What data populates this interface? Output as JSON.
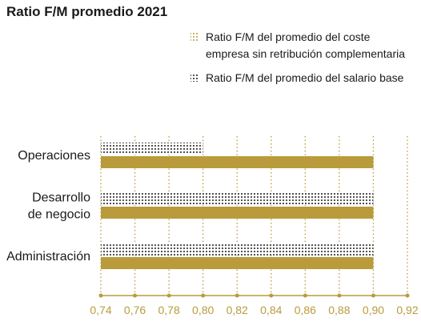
{
  "chart_data": {
    "type": "bar",
    "orientation": "horizontal",
    "title": "Ratio F/M promedio 2021",
    "categories": [
      "Operaciones",
      "Desarrollo de negocio",
      "Administración"
    ],
    "category_label_lines": [
      [
        "Operaciones"
      ],
      [
        "Desarrollo",
        "de negocio"
      ],
      [
        "Administración"
      ]
    ],
    "series": [
      {
        "name": "Ratio F/M del promedio del salario base",
        "legend_lines": [
          "Ratio F/M del promedio del salario base"
        ],
        "values": [
          0.8,
          0.9,
          0.9
        ],
        "style": "dotted",
        "color": "#1a1a1a"
      },
      {
        "name": "Ratio F/M del promedio del coste empresa sin retribución complementaria",
        "legend_lines": [
          "Ratio F/M del promedio del coste",
          "empresa sin retribución complementaria"
        ],
        "values": [
          0.9,
          0.9,
          0.9
        ],
        "style": "solid",
        "color": "#b99b3c"
      }
    ],
    "legend_order": [
      1,
      0
    ],
    "xlim": [
      0.74,
      0.92
    ],
    "xticks": [
      0.74,
      0.76,
      0.78,
      0.8,
      0.82,
      0.84,
      0.86,
      0.88,
      0.9,
      0.92
    ],
    "xtick_labels": [
      "0,74",
      "0,76",
      "0,78",
      "0,80",
      "0,82",
      "0,84",
      "0,86",
      "0,88",
      "0,90",
      "0,92"
    ],
    "xlabel": "",
    "ylabel": "",
    "grid": "vertical dotted",
    "legend_position": "top-right",
    "axis_color": "#b99b3c",
    "text_color": "#1a1a1a"
  }
}
